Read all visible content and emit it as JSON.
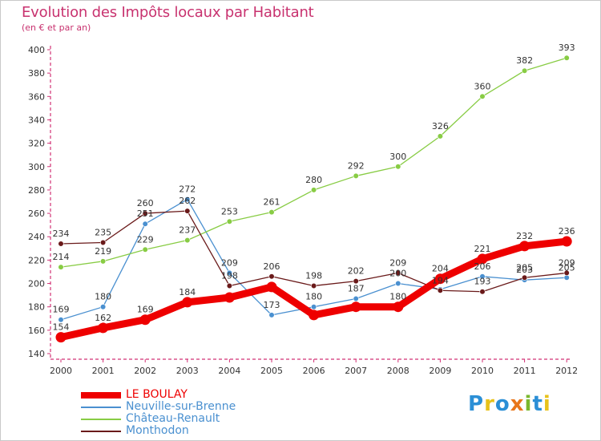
{
  "chart_data": {
    "type": "line",
    "title": "Evolution des Impôts locaux par Habitant",
    "subtitle": "(en € et par an)",
    "x": [
      "2000",
      "2001",
      "2002",
      "2003",
      "2004",
      "2005",
      "2006",
      "2007",
      "2008",
      "2009",
      "2010",
      "2011",
      "2012"
    ],
    "ylim": [
      140,
      400
    ],
    "yticks": [
      140,
      160,
      180,
      200,
      220,
      240,
      260,
      280,
      300,
      320,
      340,
      360,
      380,
      400
    ],
    "grid": false,
    "legend_position": "bottom-left",
    "series": [
      {
        "name": "LE BOULAY",
        "color": "#ee0000",
        "values": [
          154,
          162,
          169,
          184,
          188,
          197,
          173,
          180,
          180,
          204,
          221,
          232,
          236
        ],
        "labels": [
          "154",
          "162",
          "169",
          "184",
          "",
          "",
          "",
          "",
          "180",
          "204",
          "221",
          "232",
          "236"
        ]
      },
      {
        "name": "Neuville-sur-Brenne",
        "color": "#4a90d0",
        "values": [
          169,
          180,
          251,
          272,
          209,
          173,
          180,
          187,
          200,
          195,
          206,
          203,
          205
        ],
        "labels": [
          "169",
          "180",
          "251",
          "272",
          "209",
          "173",
          "180",
          "187",
          "200",
          "",
          "206",
          "203",
          "205"
        ]
      },
      {
        "name": "Château-Renault",
        "color": "#88cc44",
        "values": [
          214,
          219,
          229,
          237,
          253,
          261,
          280,
          292,
          300,
          326,
          360,
          382,
          393
        ],
        "labels": [
          "214",
          "219",
          "229",
          "237",
          "253",
          "261",
          "280",
          "292",
          "300",
          "326",
          "360",
          "382",
          "393"
        ]
      },
      {
        "name": "Monthodon",
        "color": "#6a1a1a",
        "values": [
          234,
          235,
          260,
          262,
          198,
          206,
          198,
          202,
          209,
          194,
          193,
          205,
          209
        ],
        "labels": [
          "234",
          "235",
          "260",
          "262",
          "198",
          "206",
          "198",
          "202",
          "209",
          "194",
          "193",
          "205",
          "209"
        ]
      }
    ]
  },
  "logo": {
    "text": "Proxiti",
    "letters": [
      "P",
      "r",
      "o",
      "x",
      "i",
      "t",
      "i"
    ],
    "colors": [
      "#2b8fd6",
      "#e8c21a",
      "#2b8fd6",
      "#e8761a",
      "#7ab82e",
      "#2b8fd6",
      "#e8c21a"
    ]
  }
}
